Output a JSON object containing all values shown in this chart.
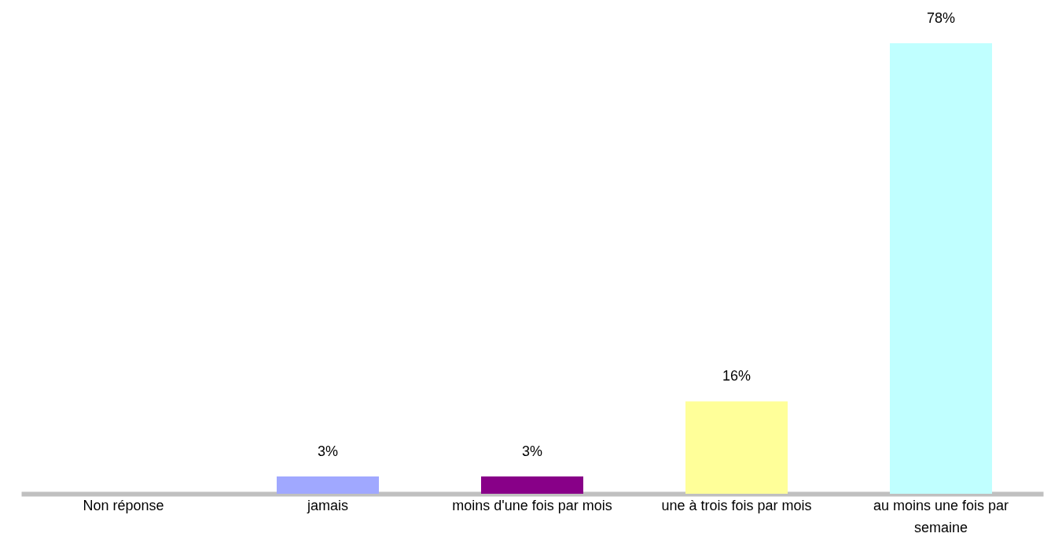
{
  "chart_data": {
    "type": "bar",
    "categories": [
      "Non réponse",
      "jamais",
      "moins d'une fois par mois",
      "une à trois fois par mois",
      "au moins une fois par semaine"
    ],
    "values": [
      null,
      3,
      3,
      16,
      78
    ],
    "value_labels": [
      null,
      "3%",
      "3%",
      "16%",
      "78%"
    ],
    "colors": [
      null,
      "#a0a8ff",
      "#880088",
      "#ffff99",
      "#c0ffff"
    ]
  }
}
